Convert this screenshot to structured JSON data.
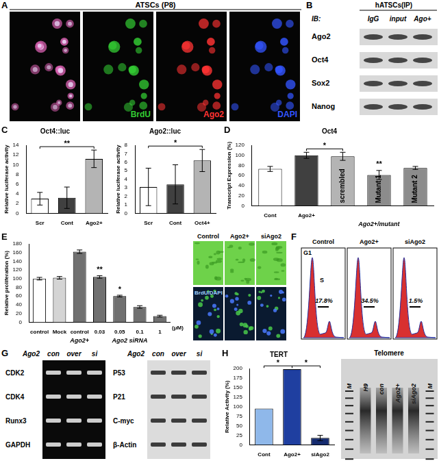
{
  "panel_A": {
    "letter": "A",
    "title": "ATSCs (P8)",
    "channels": [
      {
        "name": "BrdU",
        "color": "#33cc33"
      },
      {
        "name": "Ago2",
        "color": "#ff3333"
      },
      {
        "name": "DAPI",
        "color": "#3355ff"
      }
    ]
  },
  "panel_B": {
    "letter": "B",
    "title": "hATSCs(IP)",
    "row_header": "IB:",
    "columns": [
      "IgG",
      "input",
      "Ago+"
    ],
    "rows": [
      "Ago2",
      "Oct4",
      "Sox2",
      "Nanog"
    ]
  },
  "chart_data": [
    {
      "panel": "C",
      "type": "bar",
      "title": "Oct4::luc",
      "y_label": "Relative luciferase activity",
      "categories": [
        "Scr",
        "Cont",
        "Ago2+"
      ],
      "values": [
        3,
        3.2,
        11.2
      ],
      "errors": [
        1.3,
        2.2,
        1.8
      ],
      "colors": [
        "#ffffff",
        "#404040",
        "#b4b4b4"
      ],
      "ylim": [
        0,
        14
      ],
      "yticks": [
        0,
        2,
        4,
        6,
        8,
        10,
        12,
        14
      ],
      "grid": false,
      "annotations": [
        {
          "text": "**",
          "from": 0,
          "to": 2
        }
      ]
    },
    {
      "type": "bar",
      "title": "Ago2::luc",
      "y_label": "Relative luciferase activity",
      "categories": [
        "Scr",
        "Cont",
        "Oct4+"
      ],
      "values": [
        3.1,
        3.4,
        6.2
      ],
      "errors": [
        2.2,
        2.3,
        1.3
      ],
      "colors": [
        "#ffffff",
        "#404040",
        "#b4b4b4"
      ],
      "ylim": [
        0,
        8
      ],
      "yticks": [
        0,
        1,
        2,
        3,
        4,
        5,
        6,
        7,
        8
      ],
      "grid": false,
      "annotations": [
        {
          "text": "*",
          "from": 0,
          "to": 2
        }
      ]
    },
    {
      "panel": "D",
      "type": "bar",
      "title": "Oct4",
      "y_label": "Transcript Expression (%)",
      "categories": [
        "Cont",
        "Ago2+",
        null,
        null,
        null
      ],
      "bar_labels": [
        null,
        null,
        "scrembled",
        "Mutant 1",
        "Mutant 2"
      ],
      "groups": [
        {
          "label": "Ago2+/mutant",
          "from": 2,
          "to": 4
        }
      ],
      "values": [
        73,
        100,
        98,
        61,
        75
      ],
      "errors": [
        5,
        6,
        8,
        9,
        3
      ],
      "colors": [
        "#ffffff",
        "#404040",
        "#b4b4b4",
        "#8c8c8c",
        "#8c8c8c"
      ],
      "ylim": [
        0,
        120
      ],
      "yticks": [
        0,
        20,
        40,
        60,
        80,
        100,
        120
      ],
      "grid": false,
      "annotations": [
        {
          "text": "*",
          "from": 1,
          "to": 2
        },
        {
          "text": "**",
          "from": 3,
          "to": 3
        }
      ]
    },
    {
      "panel": "E",
      "type": "bar",
      "y_label": "Relative proliferation (%)",
      "x_label": "(μM)",
      "categories": [
        "control",
        "Mock",
        "control",
        "0.03",
        "0.05",
        "0.1",
        "1"
      ],
      "groups": [
        {
          "label": "Ago2+",
          "from": 2,
          "to": 2
        },
        {
          "label": "Ago2 siRNA",
          "from": 3,
          "to": 6
        }
      ],
      "values": [
        100,
        102,
        162,
        104,
        60,
        35,
        14
      ],
      "errors": [
        3,
        3,
        4,
        3,
        2,
        3,
        2
      ],
      "colors": [
        "#ffffff",
        "#d4d4d4",
        "#707070",
        "#707070",
        "#707070",
        "#707070",
        "#707070"
      ],
      "ylim": [
        0,
        180
      ],
      "yticks": [
        0,
        20,
        40,
        60,
        80,
        100,
        120,
        140,
        160,
        180
      ],
      "grid": false,
      "annotations": [
        {
          "text": "**",
          "from": 3,
          "to": 3
        },
        {
          "text": "*",
          "from": 4,
          "to": 4
        }
      ]
    },
    {
      "panel": "H",
      "type": "bar",
      "title": "TERT",
      "y_label": "Relative Activity (%)",
      "categories": [
        "Cont",
        "Ago2+",
        "siAgo2"
      ],
      "values": [
        95,
        198,
        18
      ],
      "errors": [
        null,
        null,
        7
      ],
      "colors": [
        "#8fb8ea",
        "#1f3fa0",
        "#142a6e"
      ],
      "ylim": [
        0,
        200
      ],
      "yticks": [
        0,
        25,
        50,
        75,
        100,
        125,
        150,
        175,
        200
      ],
      "grid": false,
      "annotations": [
        {
          "text": "*",
          "from": 0,
          "to": 1
        },
        {
          "text": "*",
          "from": 1,
          "to": 2
        }
      ]
    }
  ],
  "panel_E_inset": {
    "columns": [
      "Control",
      "Ago2+",
      "siAgo2"
    ],
    "stain": "BrdU/DAPI"
  },
  "panel_F": {
    "letter": "F",
    "phase_labels": [
      "G1",
      "S"
    ],
    "plots": [
      {
        "title": "Control",
        "s_phase": "17.8%"
      },
      {
        "title": "Ago2+",
        "s_phase": "34.5%"
      },
      {
        "title": "siAgo2",
        "s_phase": "1.5%"
      }
    ]
  },
  "panel_G": {
    "letter": "G",
    "blots": [
      {
        "header": "Ago2",
        "columns": [
          "con",
          "over",
          "si"
        ],
        "rows": [
          "CDK2",
          "CDK4",
          "Runx3",
          "GAPDH"
        ]
      },
      {
        "header": "Ago2",
        "columns": [
          "con",
          "over",
          "si"
        ],
        "rows": [
          "P53",
          "P21",
          "C-myc",
          "β-Actin"
        ]
      }
    ]
  },
  "panel_H_gel": {
    "title": "Telomere",
    "lanes": [
      "M",
      "H9",
      "con",
      "Ago2+",
      "siAgo2",
      "M"
    ]
  }
}
